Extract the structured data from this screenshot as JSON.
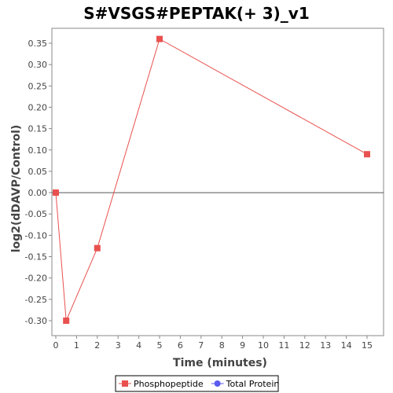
{
  "chart_data": {
    "type": "line",
    "title": "S#VSGS#PEPTAK(+ 3)_v1",
    "xlabel": "Time (minutes)",
    "ylabel": "log2(dDAVP/Control)",
    "xlim": [
      0,
      15.8
    ],
    "ylim": [
      -0.335,
      0.385
    ],
    "xticks": [
      "0",
      "1",
      "2",
      "3",
      "4",
      "5",
      "6",
      "7",
      "8",
      "9",
      "10",
      "11",
      "12",
      "13",
      "14",
      "15"
    ],
    "yticks": [
      "0.35",
      "0.30",
      "0.25",
      "0.20",
      "0.15",
      "0.10",
      "0.05",
      "0.00",
      "-0.05",
      "-0.10",
      "-0.15",
      "-0.20",
      "-0.25",
      "-0.30"
    ],
    "grid": false,
    "legend_position": "bottom",
    "series": [
      {
        "name": "Phosphopeptide",
        "color": "#e8514f",
        "marker": "square",
        "x": [
          0,
          0.5,
          2,
          5,
          15
        ],
        "y": [
          0.0,
          -0.3,
          -0.13,
          0.36,
          0.09
        ]
      },
      {
        "name": "Total Protein",
        "color": "#5a5af0",
        "marker": "circle",
        "x": [],
        "y": []
      }
    ]
  }
}
